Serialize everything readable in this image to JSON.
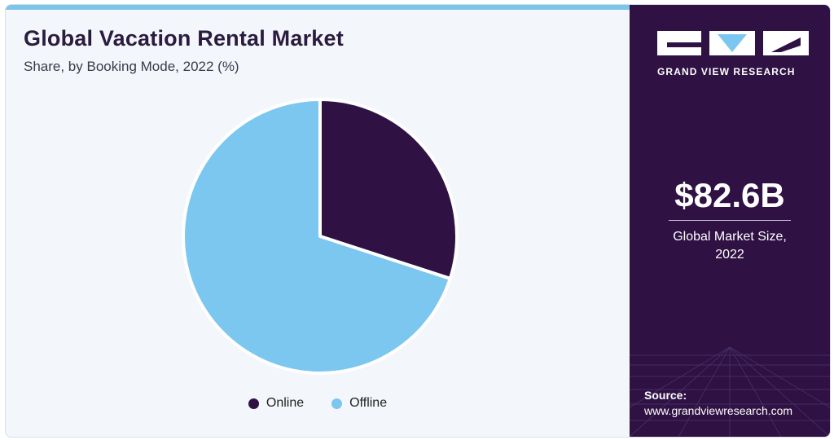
{
  "header": {
    "title": "Global Vacation Rental Market",
    "subtitle": "Share, by Booking Mode, 2022 (%)"
  },
  "chart_data": {
    "type": "pie",
    "categories": [
      "Online",
      "Offline"
    ],
    "values": [
      30,
      70
    ],
    "colors": [
      "#2f1143",
      "#7cc7f0"
    ],
    "legend_position": "bottom-center"
  },
  "sidebar": {
    "logo_text": "GRAND VIEW RESEARCH",
    "market_size": "$82.6B",
    "market_caption_line1": "Global Market Size,",
    "market_caption_line2": "2022",
    "source_label": "Source:",
    "source_url": "www.grandviewresearch.com"
  },
  "theme": {
    "panel_color": "#2f1143",
    "background": "#f3f6fb",
    "accent": "#7cc4ea"
  }
}
